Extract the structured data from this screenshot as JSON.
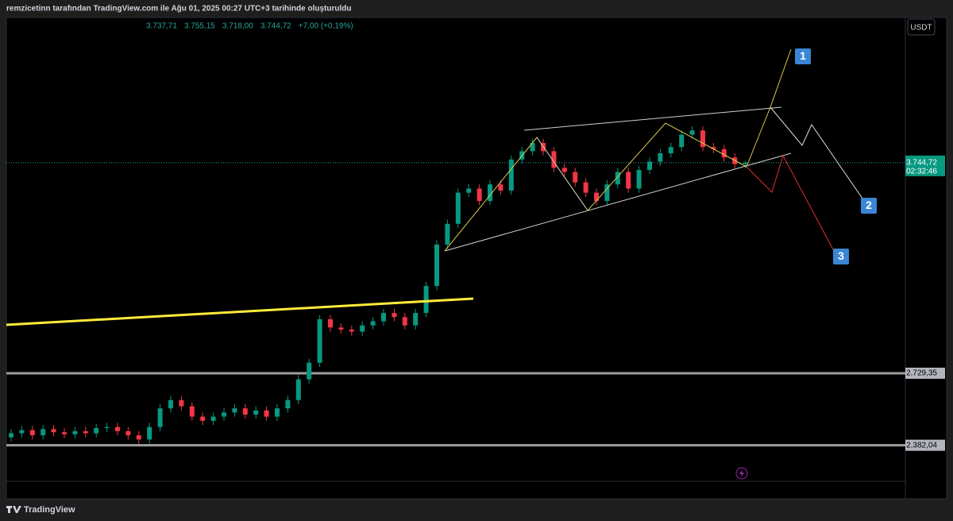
{
  "header": "remzicetinn tarafından TradingView.com ile Ağu 01, 2025 00:27 UTC+3 tarihinde oluşturuldu",
  "chart_data": {
    "type": "candlestick",
    "legend_values": [
      "3.737,71",
      "3.755,15",
      "3.718,00",
      "3.744,72",
      "+7,00 (+0,19%)"
    ],
    "currency": "USDT",
    "ylim": [
      2124,
      4445
    ],
    "up_color": "#089981",
    "down_color": "#f23645",
    "open": [
      2420,
      2440,
      2455,
      2430,
      2460,
      2445,
      2435,
      2450,
      2440,
      2465,
      2470,
      2450,
      2430,
      2410,
      2470,
      2560,
      2600,
      2570,
      2520,
      2500,
      2520,
      2540,
      2560,
      2530,
      2550,
      2520,
      2560,
      2600,
      2700,
      2780,
      2990,
      2950,
      2940,
      2930,
      2960,
      2980,
      3020,
      3000,
      2960,
      3020,
      3150,
      3350,
      3450,
      3600,
      3620,
      3560,
      3640,
      3610,
      3760,
      3800,
      3840,
      3800,
      3720,
      3700,
      3650,
      3600,
      3560,
      3640,
      3700,
      3620,
      3710,
      3750,
      3790,
      3820,
      3880,
      3900,
      3820,
      3810,
      3770,
      3737.71
    ],
    "high": [
      2460,
      2475,
      2475,
      2480,
      2480,
      2465,
      2470,
      2470,
      2485,
      2490,
      2490,
      2470,
      2450,
      2490,
      2580,
      2620,
      2620,
      2590,
      2540,
      2540,
      2560,
      2580,
      2580,
      2570,
      2570,
      2580,
      2620,
      2720,
      2800,
      3010,
      3010,
      2970,
      2960,
      2980,
      3000,
      3040,
      3040,
      3020,
      3040,
      3170,
      3370,
      3470,
      3620,
      3640,
      3640,
      3660,
      3660,
      3780,
      3820,
      3860,
      3860,
      3820,
      3740,
      3720,
      3670,
      3620,
      3660,
      3720,
      3720,
      3730,
      3770,
      3810,
      3840,
      3900,
      3920,
      3920,
      3840,
      3830,
      3790,
      3755.15
    ],
    "low": [
      2400,
      2420,
      2410,
      2410,
      2425,
      2415,
      2415,
      2420,
      2420,
      2445,
      2430,
      2410,
      2390,
      2390,
      2450,
      2540,
      2550,
      2500,
      2480,
      2480,
      2500,
      2520,
      2510,
      2510,
      2500,
      2500,
      2540,
      2580,
      2680,
      2760,
      2930,
      2920,
      2910,
      2910,
      2940,
      2960,
      2980,
      2940,
      2940,
      3000,
      3130,
      3330,
      3430,
      3580,
      3540,
      3540,
      3590,
      3590,
      3740,
      3780,
      3780,
      3700,
      3680,
      3630,
      3580,
      3540,
      3540,
      3620,
      3600,
      3600,
      3690,
      3730,
      3770,
      3800,
      3860,
      3800,
      3790,
      3750,
      3717.72,
      3718
    ],
    "close": [
      2440,
      2455,
      2430,
      2460,
      2445,
      2435,
      2450,
      2440,
      2465,
      2470,
      2450,
      2430,
      2410,
      2470,
      2560,
      2600,
      2570,
      2520,
      2500,
      2520,
      2540,
      2560,
      2530,
      2550,
      2520,
      2560,
      2600,
      2700,
      2780,
      2990,
      2950,
      2940,
      2930,
      2960,
      2980,
      3020,
      3000,
      2960,
      3020,
      3150,
      3350,
      3450,
      3600,
      3620,
      3560,
      3640,
      3610,
      3760,
      3800,
      3840,
      3800,
      3720,
      3700,
      3650,
      3600,
      3560,
      3640,
      3700,
      3620,
      3710,
      3750,
      3790,
      3820,
      3880,
      3900,
      3820,
      3810,
      3770,
      3737.72,
      3744.72
    ],
    "price_labels": [
      {
        "value": 3744.72,
        "label": "3.744,72"
      },
      {
        "value": 2729.35,
        "label": "2.729,35"
      },
      {
        "value": 2382.04,
        "label": "2.382,04"
      }
    ],
    "countdown": "02:32:46",
    "annotations": [
      "1",
      "2",
      "3"
    ]
  },
  "footer": "TradingView"
}
